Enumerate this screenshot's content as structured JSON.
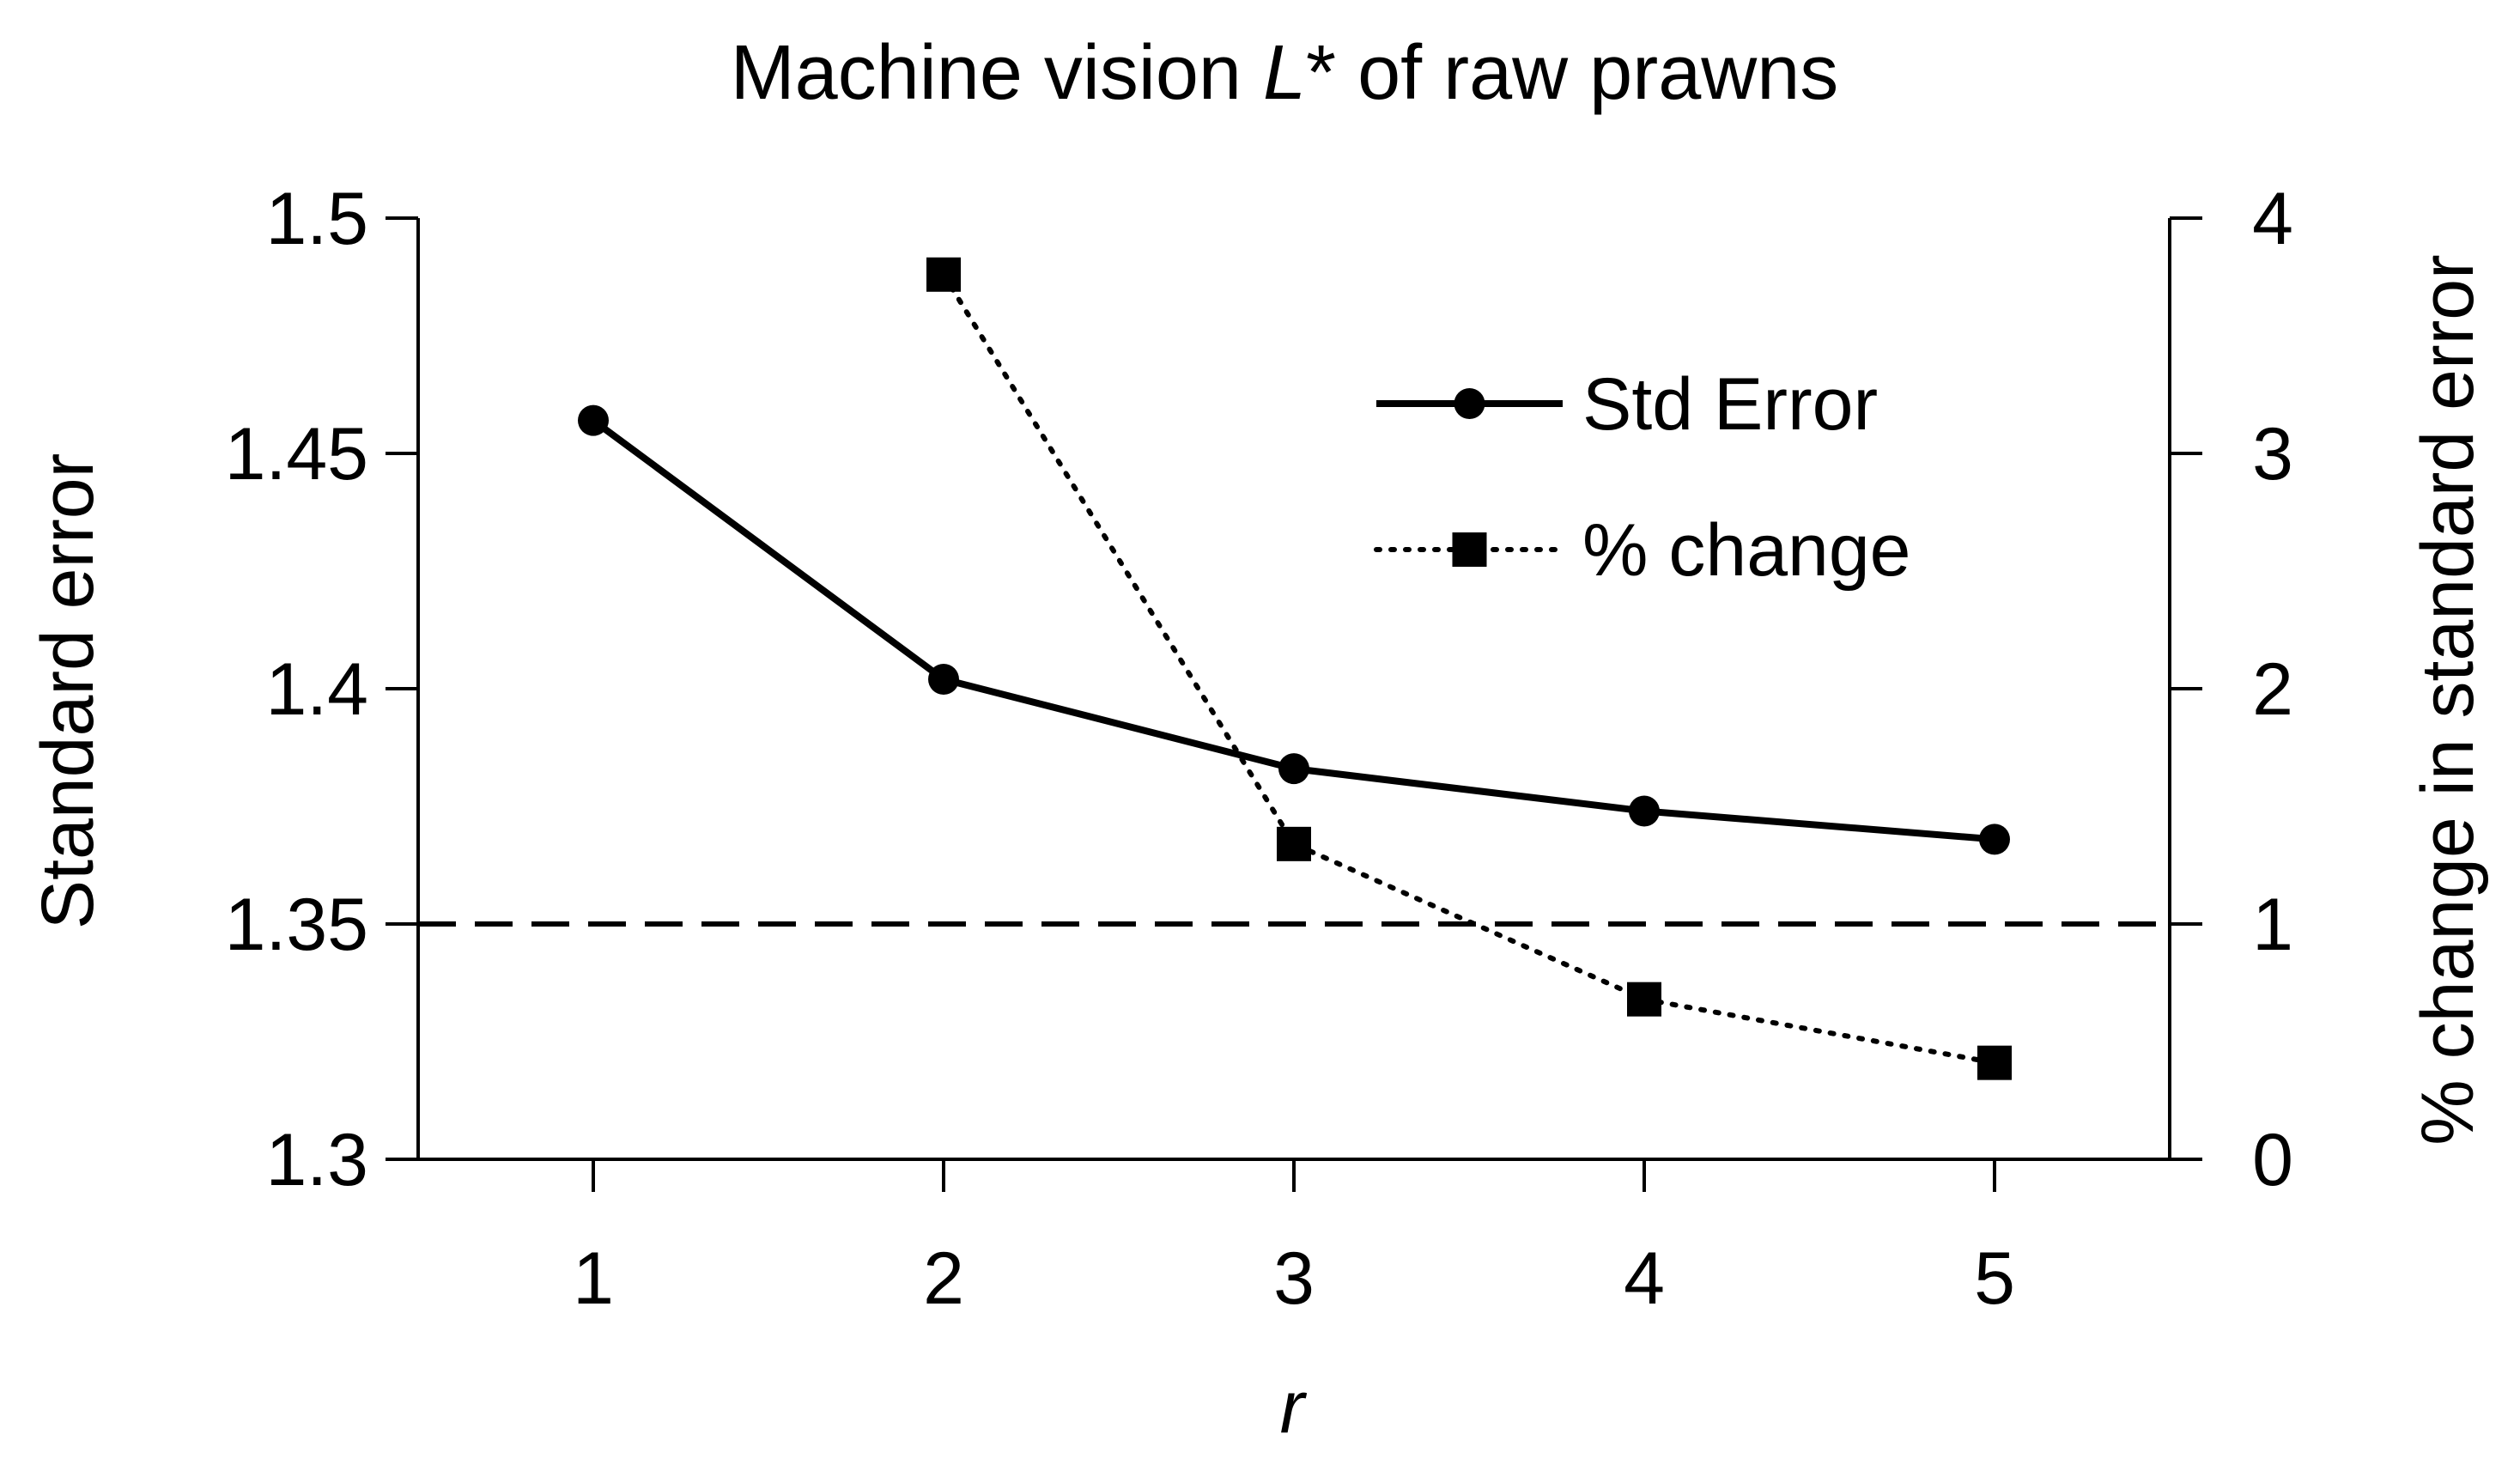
{
  "chart_data": {
    "type": "line",
    "title": "Machine vision L* of raw prawns",
    "title_prefix": "Machine vision ",
    "title_italic": "L",
    "title_suffix": "* of raw prawns",
    "xlabel": "r",
    "ylabel": "Standard error",
    "y2label": "% change in standard error",
    "x": [
      1,
      2,
      3,
      4,
      5
    ],
    "x_ticks": [
      "1",
      "2",
      "3",
      "4",
      "5"
    ],
    "xlim": [
      0.5,
      5.5
    ],
    "ylim": [
      1.3,
      1.5
    ],
    "y_ticks": [
      "1.3",
      "1.35",
      "1.4",
      "1.45",
      "1.5"
    ],
    "y_tick_values": [
      1.3,
      1.35,
      1.4,
      1.45,
      1.5
    ],
    "y2lim": [
      0,
      4
    ],
    "y2_ticks": [
      "0",
      "1",
      "2",
      "3",
      "4"
    ],
    "y2_tick_values": [
      0,
      1,
      2,
      3,
      4
    ],
    "reference_line": {
      "axis": "y2",
      "value": 1,
      "style": "dashed"
    },
    "legend_position": "top-right",
    "grid": false,
    "series": [
      {
        "name": "Std Error",
        "axis": "left",
        "x": [
          1,
          2,
          3,
          4,
          5
        ],
        "values": [
          1.457,
          1.402,
          1.383,
          1.374,
          1.368
        ],
        "style": "solid",
        "marker": "circle",
        "color": "#000000"
      },
      {
        "name": "% change",
        "axis": "right",
        "x": [
          2,
          3,
          4,
          5
        ],
        "values": [
          3.76,
          1.34,
          0.68,
          0.41
        ],
        "style": "dotted",
        "marker": "square",
        "color": "#000000"
      }
    ]
  }
}
